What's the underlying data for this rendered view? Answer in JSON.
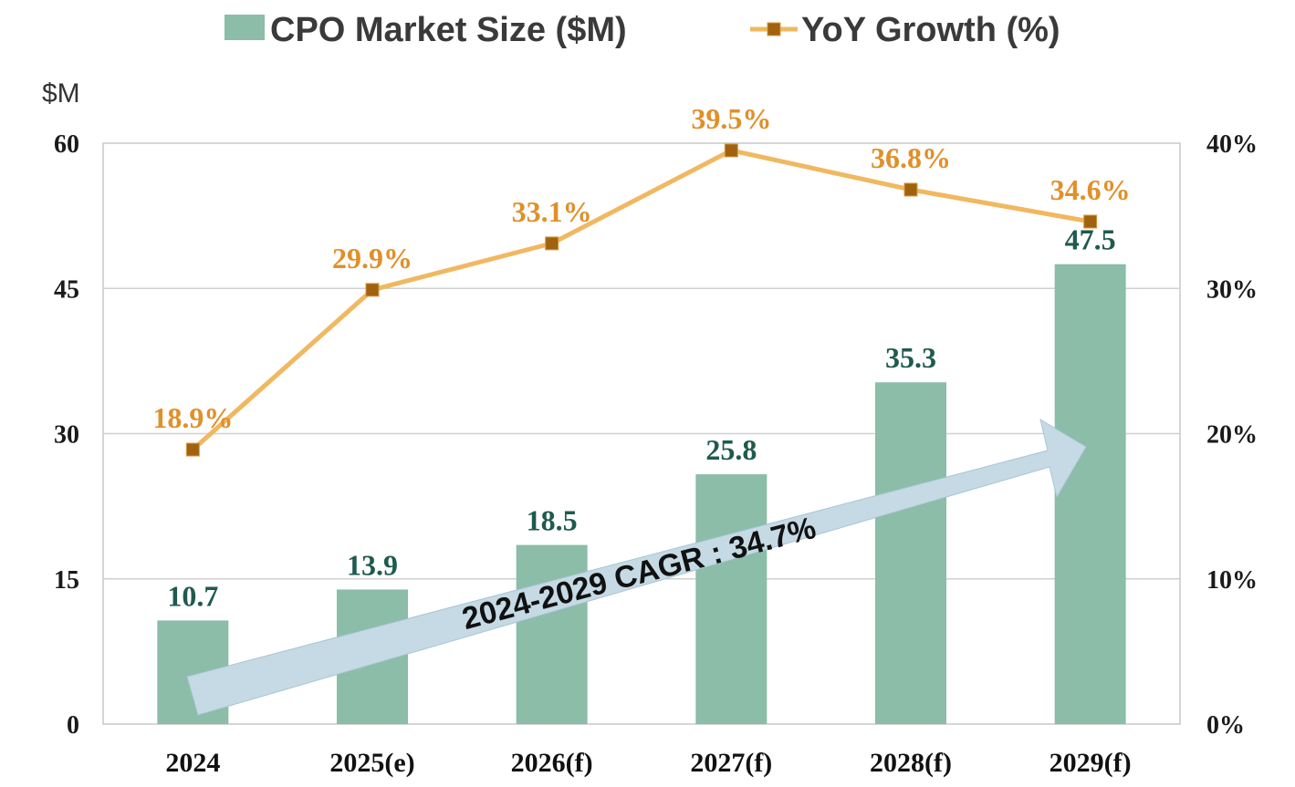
{
  "legend": {
    "bar_label": "CPO Market Size ($M)",
    "line_label": "YoY Growth (%)"
  },
  "left_axis_unit": "$M",
  "annotation": "2024-2029 CAGR : 34.7%",
  "colors": {
    "bar": "#8bbda8",
    "line": "#f0b860",
    "marker": "#a0620e",
    "bar_label": "#1f5a4e",
    "line_label": "#e0902a",
    "arrow": "#c5dae4"
  },
  "chart_data": {
    "type": "bar",
    "categories": [
      "2024",
      "2025(e)",
      "2026(f)",
      "2027(f)",
      "2028(f)",
      "2029(f)"
    ],
    "series": [
      {
        "name": "CPO Market Size ($M)",
        "type": "bar",
        "axis": "left",
        "values": [
          10.7,
          13.9,
          18.5,
          25.8,
          35.3,
          47.5
        ],
        "labels": [
          "10.7",
          "13.9",
          "18.5",
          "25.8",
          "35.3",
          "47.5"
        ]
      },
      {
        "name": "YoY Growth (%)",
        "type": "line",
        "axis": "right",
        "values": [
          18.9,
          29.9,
          33.1,
          39.5,
          36.8,
          34.6
        ],
        "labels": [
          "18.9%",
          "29.9%",
          "33.1%",
          "39.5%",
          "36.8%",
          "34.6%"
        ]
      }
    ],
    "ylim": [
      0,
      60
    ],
    "yticks": [
      "0",
      "15",
      "30",
      "45",
      "60"
    ],
    "y2lim": [
      0,
      40
    ],
    "y2ticks": [
      "0%",
      "10%",
      "20%",
      "30%",
      "40%"
    ],
    "grid": true,
    "legend_position": "top"
  }
}
